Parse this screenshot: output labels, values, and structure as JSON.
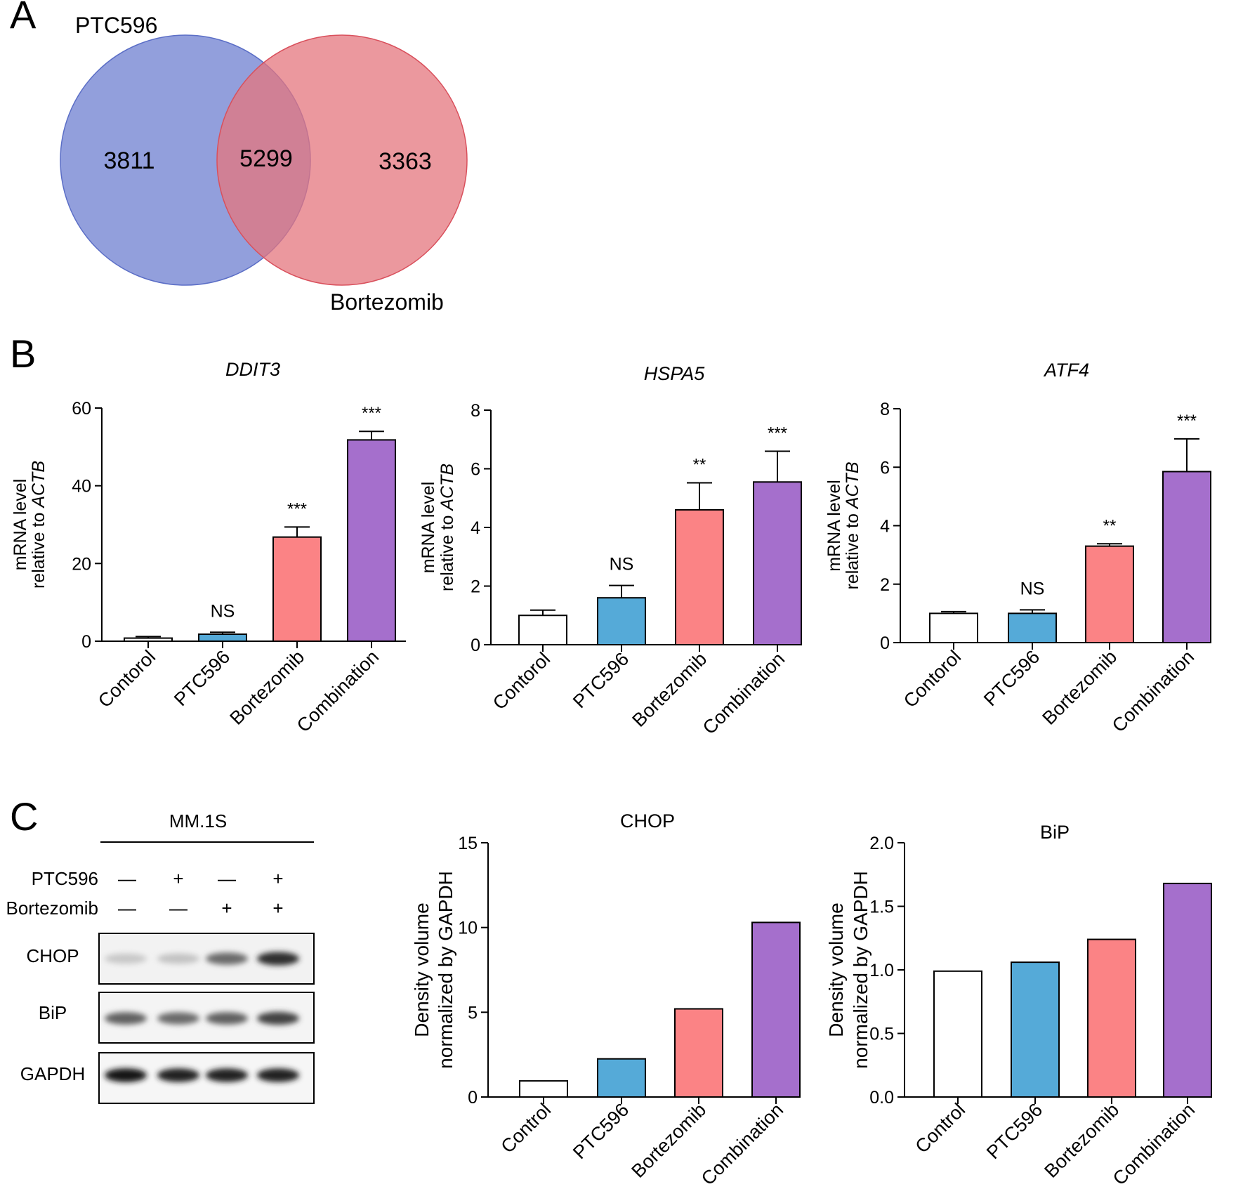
{
  "panels": {
    "a": "A",
    "b": "B",
    "c": "C"
  },
  "venn": {
    "sets": [
      {
        "label": "PTC596",
        "color": "#7f8ed6"
      },
      {
        "label": "Bortezomib",
        "color": "#e4767e"
      }
    ],
    "only_a": "3811",
    "overlap": "5299",
    "only_b": "3363"
  },
  "colors": {
    "control": "#ffffff",
    "ptc596": "#55aad8",
    "bortezomib": "#fb8385",
    "combination": "#a56fcc"
  },
  "chart_data": [
    {
      "type": "bar",
      "panel": "B",
      "title": "DDIT3",
      "title_italic": true,
      "ylabel": [
        "mRNA level",
        "relative to ",
        "ACTB"
      ],
      "categories": [
        "Contorol",
        "PTC596",
        "Bortezomib",
        "Combination"
      ],
      "values": [
        0.8,
        1.8,
        26.8,
        51.8
      ],
      "errors": [
        0.4,
        0.5,
        2.6,
        2.2
      ],
      "significance": [
        "",
        "NS",
        "***",
        "***"
      ],
      "ylim": [
        0,
        60
      ],
      "yticks": [
        0,
        20,
        40,
        60
      ]
    },
    {
      "type": "bar",
      "panel": "B",
      "title": "HSPA5",
      "title_italic": true,
      "ylabel": [
        "mRNA level",
        "relative to ",
        "ACTB"
      ],
      "categories": [
        "Contorol",
        "PTC596",
        "Bortezomib",
        "Combination"
      ],
      "values": [
        1.0,
        1.6,
        4.6,
        5.55
      ],
      "errors": [
        0.18,
        0.42,
        0.92,
        1.05
      ],
      "significance": [
        "",
        "NS",
        "**",
        "***"
      ],
      "ylim": [
        0,
        8
      ],
      "yticks": [
        0,
        2,
        4,
        6,
        8
      ]
    },
    {
      "type": "bar",
      "panel": "B",
      "title": "ATF4",
      "title_italic": true,
      "ylabel": [
        "mRNA level",
        "relative to ",
        "ACTB"
      ],
      "categories": [
        "Contorol",
        "PTC596",
        "Bortezomib",
        "Combination"
      ],
      "values": [
        1.0,
        1.0,
        3.3,
        5.85
      ],
      "errors": [
        0.06,
        0.12,
        0.08,
        1.12
      ],
      "significance": [
        "",
        "NS",
        "**",
        "***"
      ],
      "ylim": [
        0,
        8
      ],
      "yticks": [
        0,
        2,
        4,
        6,
        8
      ]
    },
    {
      "type": "bar",
      "panel": "C",
      "title": "CHOP",
      "title_italic": false,
      "ylabel": [
        "Density volume",
        "normalized by GAPDH"
      ],
      "categories": [
        "Control",
        "PTC596",
        "Bortezomib",
        "Combination"
      ],
      "values": [
        0.95,
        2.25,
        5.2,
        10.3
      ],
      "ylim": [
        0,
        15
      ],
      "yticks": [
        0,
        5,
        10,
        15
      ]
    },
    {
      "type": "bar",
      "panel": "C",
      "title": "BiP",
      "title_italic": false,
      "ylabel": [
        "Density volume",
        "normalized by GAPDH"
      ],
      "categories": [
        "Control",
        "PTC596",
        "Bortezomib",
        "Combination"
      ],
      "values": [
        0.99,
        1.06,
        1.24,
        1.68
      ],
      "ylim": [
        0,
        2.0
      ],
      "yticks": [
        "0.0",
        "0.5",
        "1.0",
        "1.5",
        "2.0"
      ]
    }
  ],
  "western": {
    "cell_line": "MM.1S",
    "treatments": [
      {
        "label": "PTC596",
        "marks": [
          "—",
          "+",
          "—",
          "+"
        ]
      },
      {
        "label": "Bortezomib",
        "marks": [
          "—",
          "—",
          "+",
          "+"
        ]
      }
    ],
    "blots": [
      {
        "label": "CHOP",
        "intensity": [
          0.1,
          0.12,
          0.55,
          0.85
        ]
      },
      {
        "label": "BiP",
        "intensity": [
          0.6,
          0.55,
          0.6,
          0.75
        ]
      },
      {
        "label": "GAPDH",
        "intensity": [
          0.95,
          0.9,
          0.9,
          0.9
        ]
      }
    ]
  }
}
